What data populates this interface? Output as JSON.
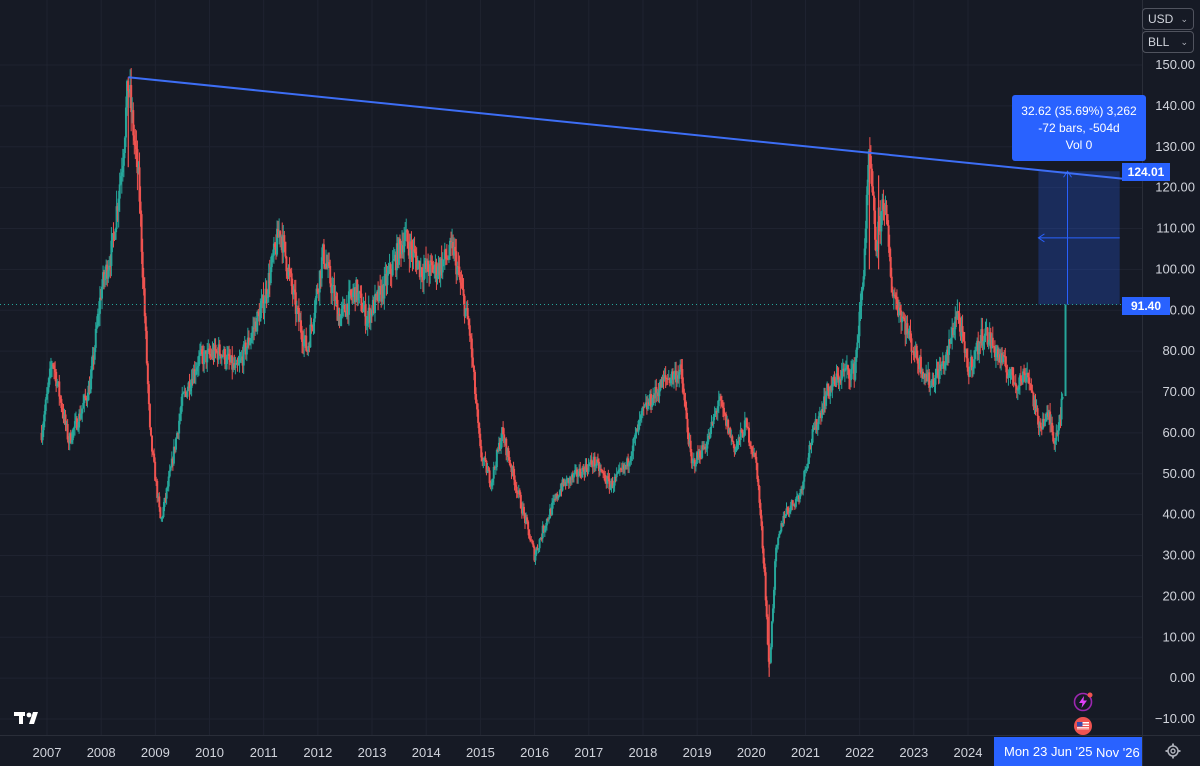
{
  "toolbar": {
    "currency": "USD",
    "unit": "BLL"
  },
  "measure": {
    "line1": "32.62 (35.69%) 3,262",
    "line2": "-72 bars, -504d",
    "line3": "Vol 0"
  },
  "price_tags": {
    "target": "124.01",
    "current": "91.40"
  },
  "crosshair": {
    "date": "Mon 23 Jun '25",
    "end_label": "Nov '26"
  },
  "colors": {
    "background": "#161a25",
    "up": "#26a69a",
    "down": "#ef5350",
    "trendline": "#3d6ef5",
    "accent": "#2962ff",
    "grid": "#1f2330"
  },
  "icons": {
    "logo": "tradingview-logo-icon",
    "settings": "gear-icon",
    "flash": "lightning-icon",
    "flag": "us-flag-icon"
  },
  "chart_data": {
    "type": "candlestick",
    "title": "",
    "xlabel": "",
    "ylabel": "",
    "y_ticks": [
      "150.00",
      "140.00",
      "130.00",
      "120.00",
      "110.00",
      "100.00",
      "90.00",
      "80.00",
      "70.00",
      "60.00",
      "50.00",
      "40.00",
      "30.00",
      "20.00",
      "10.00",
      "0.00",
      "−10.00"
    ],
    "ylim": [
      -12,
      153
    ],
    "x_ticks": [
      "2007",
      "2008",
      "2009",
      "2010",
      "2011",
      "2012",
      "2013",
      "2014",
      "2015",
      "2016",
      "2017",
      "2018",
      "2019",
      "2020",
      "2021",
      "2022",
      "2023",
      "2024"
    ],
    "xlim": [
      2006.9,
      2027.0
    ],
    "price_path": [
      [
        2006.9,
        60
      ],
      [
        2007.1,
        78
      ],
      [
        2007.4,
        58
      ],
      [
        2007.6,
        64
      ],
      [
        2007.8,
        72
      ],
      [
        2008.0,
        95
      ],
      [
        2008.2,
        105
      ],
      [
        2008.4,
        128
      ],
      [
        2008.5,
        146
      ],
      [
        2008.7,
        120
      ],
      [
        2008.9,
        60
      ],
      [
        2009.1,
        38
      ],
      [
        2009.3,
        52
      ],
      [
        2009.5,
        68
      ],
      [
        2009.8,
        78
      ],
      [
        2010.2,
        80
      ],
      [
        2010.5,
        75
      ],
      [
        2010.8,
        85
      ],
      [
        2011.0,
        92
      ],
      [
        2011.3,
        110
      ],
      [
        2011.6,
        90
      ],
      [
        2011.8,
        80
      ],
      [
        2012.1,
        104
      ],
      [
        2012.4,
        88
      ],
      [
        2012.7,
        95
      ],
      [
        2012.9,
        88
      ],
      [
        2013.2,
        95
      ],
      [
        2013.6,
        108
      ],
      [
        2013.9,
        100
      ],
      [
        2014.2,
        100
      ],
      [
        2014.5,
        105
      ],
      [
        2014.8,
        85
      ],
      [
        2015.0,
        55
      ],
      [
        2015.2,
        48
      ],
      [
        2015.4,
        60
      ],
      [
        2015.7,
        45
      ],
      [
        2016.0,
        30
      ],
      [
        2016.2,
        38
      ],
      [
        2016.5,
        47
      ],
      [
        2016.8,
        50
      ],
      [
        2017.1,
        53
      ],
      [
        2017.4,
        47
      ],
      [
        2017.7,
        52
      ],
      [
        2018.0,
        65
      ],
      [
        2018.4,
        73
      ],
      [
        2018.7,
        75
      ],
      [
        2018.9,
        52
      ],
      [
        2019.2,
        58
      ],
      [
        2019.4,
        68
      ],
      [
        2019.7,
        56
      ],
      [
        2019.9,
        62
      ],
      [
        2020.1,
        52
      ],
      [
        2020.25,
        25
      ],
      [
        2020.33,
        1
      ],
      [
        2020.45,
        30
      ],
      [
        2020.6,
        40
      ],
      [
        2020.9,
        45
      ],
      [
        2021.1,
        58
      ],
      [
        2021.4,
        70
      ],
      [
        2021.7,
        75
      ],
      [
        2021.9,
        75
      ],
      [
        2022.05,
        95
      ],
      [
        2022.18,
        128
      ],
      [
        2022.3,
        105
      ],
      [
        2022.45,
        118
      ],
      [
        2022.6,
        95
      ],
      [
        2022.8,
        88
      ],
      [
        2023.0,
        80
      ],
      [
        2023.3,
        72
      ],
      [
        2023.6,
        78
      ],
      [
        2023.8,
        90
      ],
      [
        2024.0,
        75
      ],
      [
        2024.3,
        85
      ],
      [
        2024.6,
        78
      ],
      [
        2024.9,
        72
      ],
      [
        2025.1,
        75
      ],
      [
        2025.3,
        62
      ],
      [
        2025.5,
        64
      ],
      [
        2025.6,
        58
      ],
      [
        2025.75,
        68
      ],
      [
        2025.8,
        91.4
      ]
    ],
    "trendline": {
      "from": [
        2008.5,
        147
      ],
      "to": [
        2027.0,
        122
      ]
    },
    "current_price": 91.4,
    "target_price": 124.01
  }
}
